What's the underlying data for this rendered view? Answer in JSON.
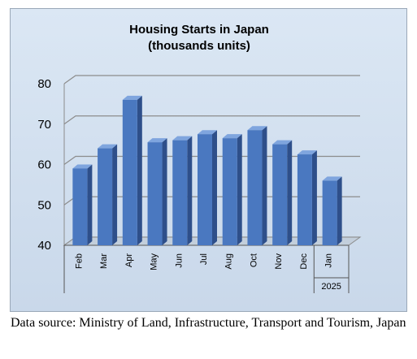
{
  "source_note": "Data source: Ministry of Land, Infrastructure, Transport and Tourism, Japan",
  "colors": {
    "bar_front": "#4a78c0",
    "bar_side": "#2e4f8a",
    "bar_top": "#7fa5de",
    "grid": "#8c8c8c",
    "background": "#d5e2f1"
  },
  "chart_data": {
    "type": "bar",
    "title": [
      "Housing Starts in Japan",
      "(thousands units)"
    ],
    "categories": [
      "Feb",
      "Mar",
      "Apr",
      "May",
      "Jun",
      "Jul",
      "Aug",
      "Oct",
      "Nov",
      "Dec",
      "Jan"
    ],
    "values": [
      59,
      64,
      76,
      65.5,
      66,
      67.5,
      66.5,
      68.5,
      65,
      62.5,
      56
    ],
    "group_label": "2025",
    "group_start_index": 10,
    "ylim": [
      40,
      80
    ],
    "yticks": [
      40,
      50,
      60,
      70,
      80
    ],
    "xlabel": "",
    "ylabel": "",
    "grid": true,
    "style": "3d-column"
  }
}
